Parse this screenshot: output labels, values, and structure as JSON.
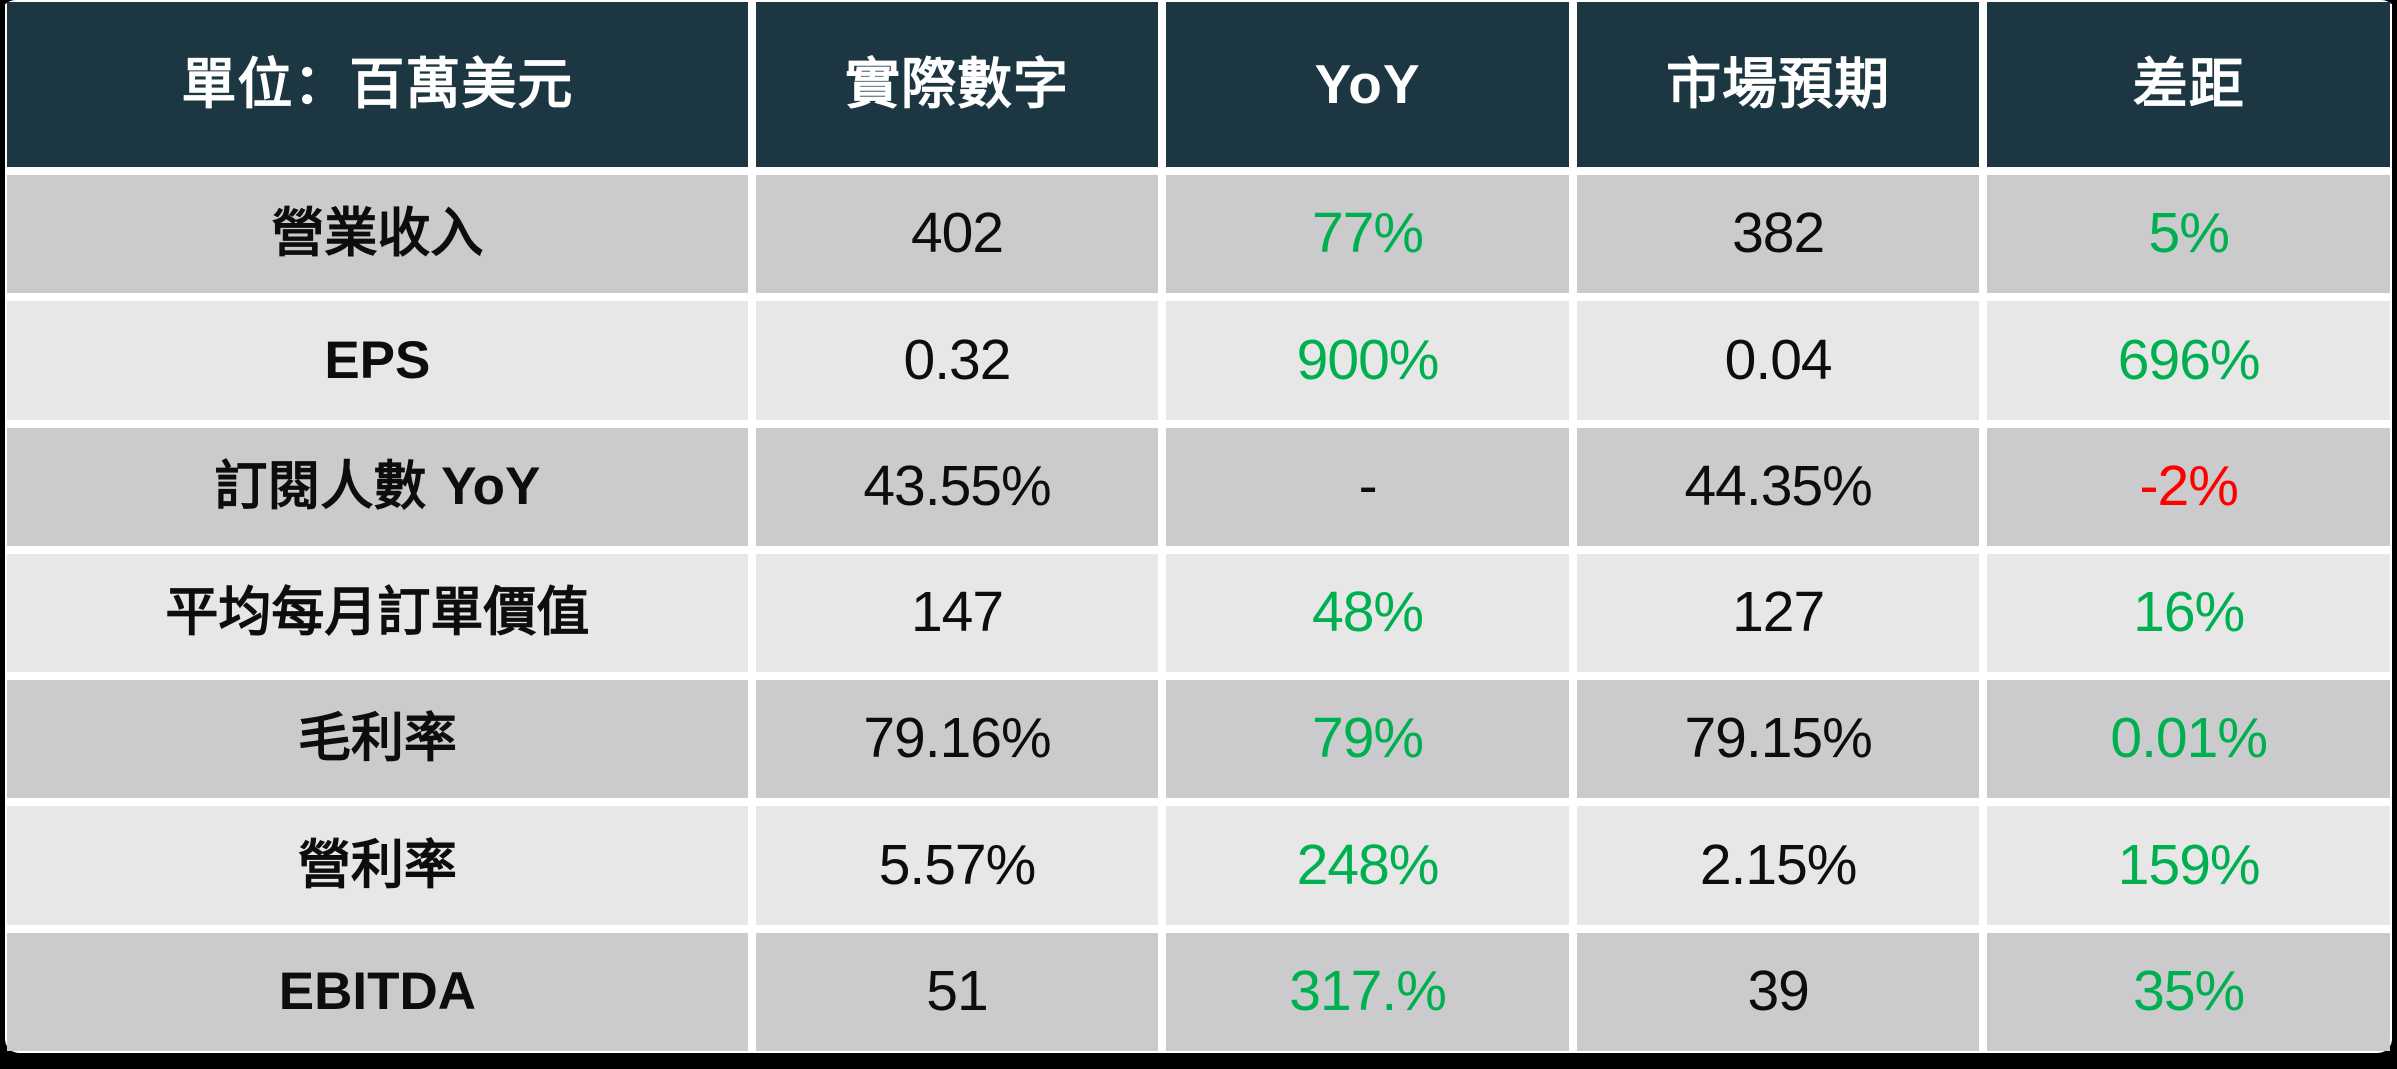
{
  "colors": {
    "header_bg": "#1C3642",
    "header_text": "#FFFFFF",
    "row_shade_dark": "#CBCBCD",
    "row_shade_light": "#E7E7E7",
    "positive_green": "#00B050",
    "negative_red": "#FF0000",
    "value_text": "#0D0D0D",
    "grid_gap_white": "#FFFFFF",
    "outer_border_black": "#000000"
  },
  "table": {
    "columns": [
      "單位：百萬美元",
      "實際數字",
      "YoY",
      "市場預期",
      "差距"
    ],
    "rows": [
      {
        "label": "營業收入",
        "cells": [
          {
            "text": "402",
            "tone": "neutral"
          },
          {
            "text": "77%",
            "tone": "pos"
          },
          {
            "text": "382",
            "tone": "neutral"
          },
          {
            "text": "5%",
            "tone": "pos"
          }
        ]
      },
      {
        "label": "EPS",
        "cells": [
          {
            "text": "0.32",
            "tone": "neutral"
          },
          {
            "text": "900%",
            "tone": "pos"
          },
          {
            "text": "0.04",
            "tone": "neutral"
          },
          {
            "text": "696%",
            "tone": "pos"
          }
        ]
      },
      {
        "label": "訂閱人數 YoY",
        "cells": [
          {
            "text": "43.55%",
            "tone": "neutral"
          },
          {
            "text": "-",
            "tone": "neutral"
          },
          {
            "text": "44.35%",
            "tone": "neutral"
          },
          {
            "text": "-2%",
            "tone": "neg"
          }
        ]
      },
      {
        "label": "平均每月訂單價值",
        "cells": [
          {
            "text": "147",
            "tone": "neutral"
          },
          {
            "text": "48%",
            "tone": "pos"
          },
          {
            "text": "127",
            "tone": "neutral"
          },
          {
            "text": "16%",
            "tone": "pos"
          }
        ]
      },
      {
        "label": "毛利率",
        "cells": [
          {
            "text": "79.16%",
            "tone": "neutral"
          },
          {
            "text": "79%",
            "tone": "pos"
          },
          {
            "text": "79.15%",
            "tone": "neutral"
          },
          {
            "text": "0.01%",
            "tone": "pos"
          }
        ]
      },
      {
        "label": "營利率",
        "cells": [
          {
            "text": "5.57%",
            "tone": "neutral"
          },
          {
            "text": "248%",
            "tone": "pos"
          },
          {
            "text": "2.15%",
            "tone": "neutral"
          },
          {
            "text": "159%",
            "tone": "pos"
          }
        ]
      },
      {
        "label": "EBITDA",
        "cells": [
          {
            "text": "51",
            "tone": "neutral"
          },
          {
            "text": "317.%",
            "tone": "pos"
          },
          {
            "text": "39",
            "tone": "neutral"
          },
          {
            "text": "35%",
            "tone": "pos"
          }
        ]
      }
    ]
  },
  "chart_data": {
    "type": "table",
    "title": "單位：百萬美元",
    "columns": [
      "單位：百萬美元",
      "實際數字",
      "YoY",
      "市場預期",
      "差距"
    ],
    "rows": [
      [
        "營業收入",
        "402",
        "77%",
        "382",
        "5%"
      ],
      [
        "EPS",
        "0.32",
        "900%",
        "0.04",
        "696%"
      ],
      [
        "訂閱人數 YoY",
        "43.55%",
        "-",
        "44.35%",
        "-2%"
      ],
      [
        "平均每月訂單價值",
        "147",
        "48%",
        "127",
        "16%"
      ],
      [
        "毛利率",
        "79.16%",
        "79%",
        "79.15%",
        "0.01%"
      ],
      [
        "營利率",
        "5.57%",
        "248%",
        "2.15%",
        "159%"
      ],
      [
        "EBITDA",
        "51",
        "317.%",
        "39",
        "35%"
      ]
    ],
    "notes": {
      "positive_values_color": "#00B050",
      "negative_values_color": "#FF0000",
      "header_style": "dark teal background, white bold text",
      "row_striping": "alternating gray (#CBCBCD) and light gray (#E7E7E7)"
    }
  }
}
